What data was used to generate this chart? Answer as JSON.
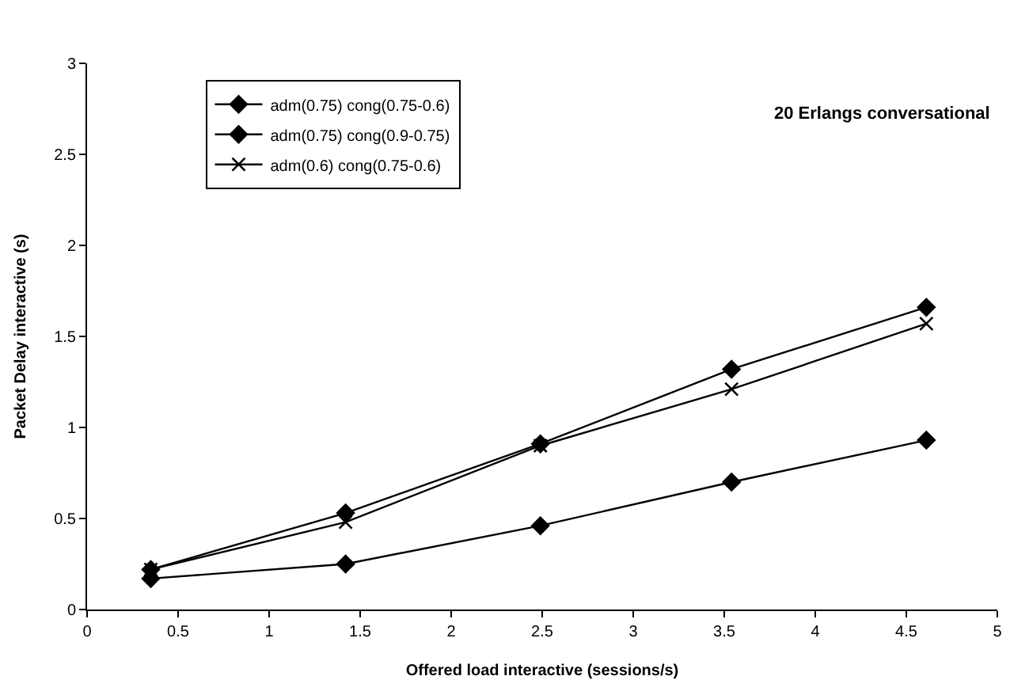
{
  "chart_data": {
    "type": "line",
    "x": [
      0.35,
      1.42,
      2.49,
      3.54,
      4.61
    ],
    "series": [
      {
        "name": "adm(0.75) cong(0.75-0.6)",
        "color": "#000000",
        "marker": "diamond",
        "values": [
          0.22,
          0.53,
          0.91,
          1.32,
          1.66
        ]
      },
      {
        "name": "adm(0.75) cong(0.9-0.75)",
        "color": "#000000",
        "marker": "diamond",
        "values": [
          0.17,
          0.25,
          0.46,
          0.7,
          0.93
        ]
      },
      {
        "name": "adm(0.6) cong(0.75-0.6)",
        "color": "#000000",
        "marker": "cross",
        "values": [
          0.22,
          0.48,
          0.9,
          1.21,
          1.57
        ]
      }
    ],
    "xlabel": "Offered load interactive (sessions/s)",
    "ylabel": "Packet Delay interactive (s)",
    "annotations": [
      "20 Erlangs conversational"
    ],
    "xlim": [
      0,
      5
    ],
    "xticks": [
      0,
      0.5,
      1,
      1.5,
      2,
      2.5,
      3,
      3.5,
      4,
      4.5,
      5
    ],
    "ylim": [
      0,
      3
    ],
    "yticks": [
      0,
      0.5,
      1,
      1.5,
      2,
      2.5,
      3
    ],
    "legend": "top left",
    "line_style": "solid"
  }
}
